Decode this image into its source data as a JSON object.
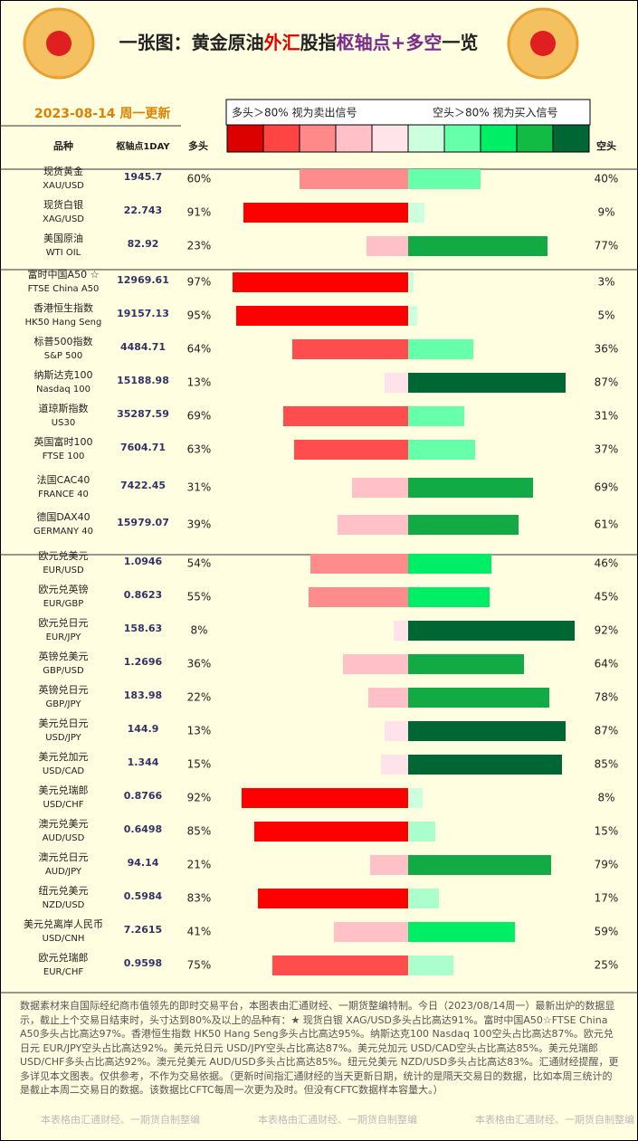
{
  "header": {
    "title_parts": [
      "一张图：黄金原油",
      "外汇",
      "股指",
      "枢轴点+多空",
      "一览"
    ],
    "date": "2023-08-14 周一更新",
    "legend_long": "多头＞80% 视为卖出信号",
    "legend_short": "空头＞80% 视为买入信号"
  },
  "columns": {
    "name": "品种",
    "pivot": "枢轴点1DAY",
    "long": "多头",
    "short": "空头"
  },
  "groups": [
    {
      "rows": [
        {
          "name": "现货黄金",
          "code": "XAU/USD",
          "pivot": 1945.7,
          "long": 60,
          "long_label": "60%",
          "short": 40,
          "short_label": "40%"
        },
        {
          "name": "现货白银",
          "code": "XAG/USD",
          "pivot": 22.743,
          "long": 91,
          "long_label": "91%",
          "short": 9,
          "short_label": "9%"
        },
        {
          "name": "美国原油",
          "code": "WTI OIL",
          "pivot": 82.92,
          "long": 23,
          "long_label": "23%",
          "short": 77,
          "short_label": "77%"
        }
      ]
    },
    {
      "rows": [
        {
          "name": "富时中国A50 ☆",
          "code": "FTSE China A50",
          "pivot": 12969.61,
          "long": 97,
          "long_label": "97%",
          "short": 3,
          "short_label": "3%"
        },
        {
          "name": "香港恒生指数",
          "code": "HK50 Hang Seng",
          "pivot": 19157.13,
          "long": 95,
          "long_label": "95%",
          "short": 5,
          "short_label": "5%"
        },
        {
          "name": "标普500指数",
          "code": "S&P 500",
          "pivot": 4484.71,
          "long": 64,
          "long_label": "64%",
          "short": 36,
          "short_label": "36%"
        },
        {
          "name": "纳斯达克100",
          "code": "Nasdaq 100",
          "pivot": 15188.98,
          "long": 13,
          "long_label": "13%",
          "short": 87,
          "short_label": "87%"
        },
        {
          "name": "道琼斯指数",
          "code": "US30",
          "pivot": 35287.59,
          "long": 69,
          "long_label": "69%",
          "short": 31,
          "short_label": "31%"
        },
        {
          "name": "英国富时100",
          "code": "FTSE 100",
          "pivot": 7604.71,
          "long": 63,
          "long_label": "63%",
          "short": 37,
          "short_label": "37%"
        },
        {
          "name": "法国CAC40",
          "code": "FRANCE 40",
          "pivot": 7422.45,
          "long": 31,
          "long_label": "31%",
          "short": 69,
          "short_label": "69%"
        },
        {
          "name": "德国DAX40",
          "code": "GERMANY 40",
          "pivot": 15979.07,
          "long": 39,
          "long_label": "39%",
          "short": 61,
          "short_label": "61%"
        }
      ]
    },
    {
      "rows": [
        {
          "name": "欧元兑美元",
          "code": "EUR/USD",
          "pivot": 1.0946,
          "long": 54,
          "long_label": "54%",
          "short": 46,
          "short_label": "46%"
        },
        {
          "name": "欧元兑英镑",
          "code": "EUR/GBP",
          "pivot": 0.8623,
          "long": 55,
          "long_label": "55%",
          "short": 45,
          "short_label": "45%"
        },
        {
          "name": "欧元兑日元",
          "code": "EUR/JPY",
          "pivot": 158.63,
          "long": 8,
          "long_label": "8%",
          "short": 92,
          "short_label": "92%"
        },
        {
          "name": "英镑兑美元",
          "code": "GBP/USD",
          "pivot": 1.2696,
          "long": 36,
          "long_label": "36%",
          "short": 64,
          "short_label": "64%"
        },
        {
          "name": "英镑兑日元",
          "code": "GBP/JPY",
          "pivot": 183.98,
          "long": 22,
          "long_label": "22%",
          "short": 78,
          "short_label": "78%"
        },
        {
          "name": "美元兑日元",
          "code": "USD/JPY",
          "pivot": 144.9,
          "long": 13,
          "long_label": "13%",
          "short": 87,
          "short_label": "87%"
        },
        {
          "name": "美元兑加元",
          "code": "USD/CAD",
          "pivot": 1.344,
          "long": 15,
          "long_label": "15%",
          "short": 85,
          "short_label": "85%"
        },
        {
          "name": "美元兑瑞郎",
          "code": "USD/CHF",
          "pivot": 0.8766,
          "long": 92,
          "long_label": "92%",
          "short": 8,
          "short_label": "8%"
        },
        {
          "name": "澳元兑美元",
          "code": "AUD/USD",
          "pivot": 0.6498,
          "long": 85,
          "long_label": "85%",
          "short": 15,
          "short_label": "15%"
        },
        {
          "name": "澳元兑日元",
          "code": "AUD/JPY",
          "pivot": 94.14,
          "long": 21,
          "long_label": "21%",
          "short": 79,
          "short_label": "79%"
        },
        {
          "name": "纽元兑美元",
          "code": "NZD/USD",
          "pivot": 0.5984,
          "long": 83,
          "long_label": "83%",
          "short": 17,
          "short_label": "17%"
        },
        {
          "name": "美元兑离岸人民币",
          "code": "USD/CNH",
          "pivot": 7.2615,
          "long": 41,
          "long_label": "41%",
          "short": 59,
          "short_label": "59%"
        },
        {
          "name": "欧元兑瑞郎",
          "code": "EUR/CHF",
          "pivot": 0.9598,
          "long": 75,
          "long_label": "75%",
          "short": 25,
          "short_label": "25%"
        }
      ]
    }
  ],
  "footer": {
    "note": "数据素材来自国际经纪商市值领先的即时交易平台，本图表由汇通财经、一期货整编特制。今日（2023/08/14周一）最新出炉的数据显示，截止上个交易日结束时，头寸达到80%及以上的品种有：★ 现货白银 XAG/USD多头占比高达91%。富时中国A50☆FTSE China A50多头占比高达97%。香港恒生指数 HK50 Hang Seng多头占比高达95%。纳斯达克100 Nasdaq 100空头占比高达87%。欧元兑日元 EUR/JPY空头占比高达92%。美元兑日元 USD/JPY空头占比高达87%。美元兑加元 USD/CAD空头占比高达85%。美元兑瑞郎 USD/CHF多头占比高达92%。澳元兑美元 AUD/USD多头占比高达85%。纽元兑美元 NZD/USD多头占比高达83%。汇通财经提醒，更多详见本文图表。仅供参考，不作为交易依据。（更新时间指汇通财经的当天更新日期，统计的是隔天交易日的数据，比如本周三统计的是截止本周二交易日的数据。该数据比CFTC每周一次更为及时。但没有CFTC数据样本容量大。）",
    "watermarks": [
      "本表格由汇通财经、一期货自制整编",
      "本表格由汇通财经、一期货自制整编",
      "本表格由汇通财经、一期货自制整编"
    ]
  }
}
